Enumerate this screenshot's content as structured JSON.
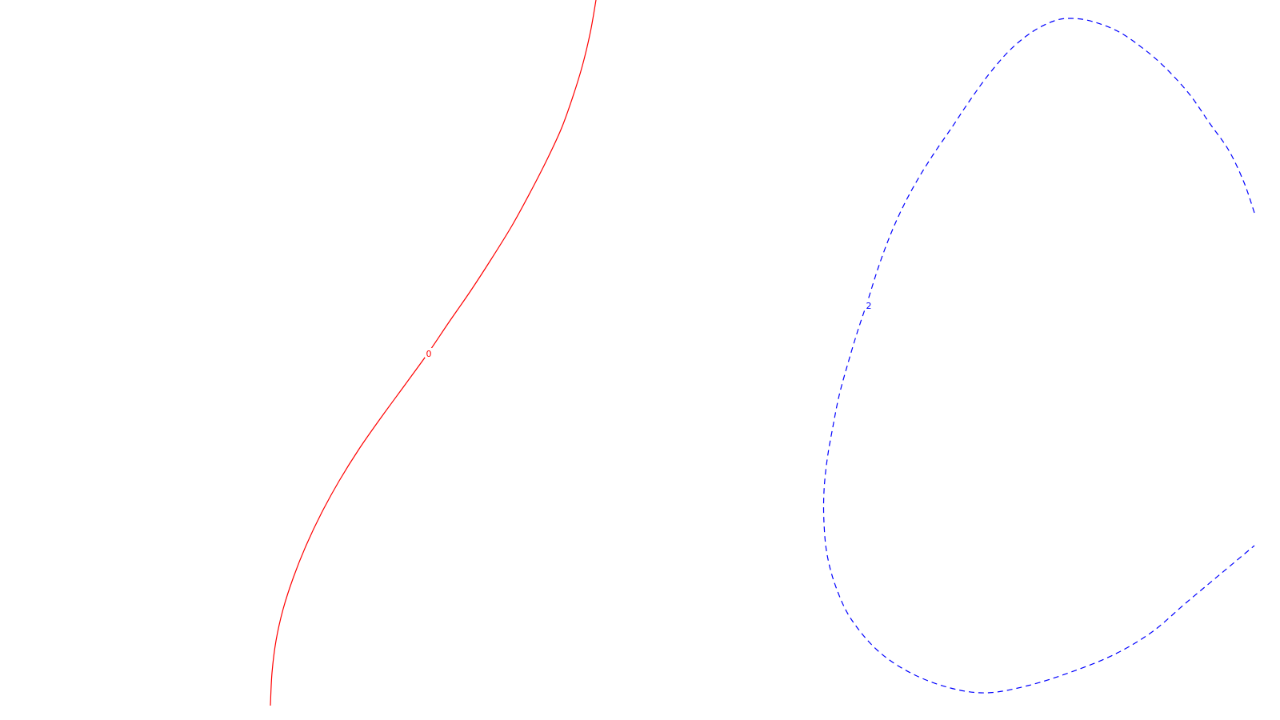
{
  "chart_data": {
    "type": "line",
    "grid": false,
    "series": [
      {
        "label": "0",
        "color": "#ff0000",
        "line_style": "solid",
        "points": [
          [
            745,
            0
          ],
          [
            738,
            40
          ],
          [
            728,
            82
          ],
          [
            716,
            121
          ],
          [
            702,
            160
          ],
          [
            684,
            199
          ],
          [
            663,
            240
          ],
          [
            640,
            282
          ],
          [
            614,
            324
          ],
          [
            588,
            364
          ],
          [
            561,
            403
          ],
          [
            536,
            440
          ],
          [
            507,
            480
          ],
          [
            477,
            521
          ],
          [
            449,
            561
          ],
          [
            424,
            601
          ],
          [
            402,
            641
          ],
          [
            383,
            681
          ],
          [
            367,
            721
          ],
          [
            354,
            761
          ],
          [
            345,
            801
          ],
          [
            340,
            841
          ],
          [
            338,
            882
          ]
        ],
        "label_position": [
          536,
          443
        ]
      },
      {
        "label": "2",
        "color": "#0000ff",
        "line_style": "dashed",
        "points": [
          [
            1568,
            266
          ],
          [
            1555,
            228
          ],
          [
            1536,
            188
          ],
          [
            1512,
            154
          ],
          [
            1487,
            118
          ],
          [
            1458,
            86
          ],
          [
            1432,
            63
          ],
          [
            1399,
            40
          ],
          [
            1366,
            27
          ],
          [
            1340,
            23
          ],
          [
            1318,
            26
          ],
          [
            1290,
            40
          ],
          [
            1262,
            63
          ],
          [
            1236,
            93
          ],
          [
            1212,
            126
          ],
          [
            1190,
            159
          ],
          [
            1166,
            194
          ],
          [
            1145,
            228
          ],
          [
            1127,
            262
          ],
          [
            1112,
            296
          ],
          [
            1098,
            334
          ],
          [
            1084,
            378
          ],
          [
            1072,
            414
          ],
          [
            1060,
            454
          ],
          [
            1049,
            494
          ],
          [
            1041,
            534
          ],
          [
            1034,
            574
          ],
          [
            1030,
            614
          ],
          [
            1030,
            654
          ],
          [
            1034,
            694
          ],
          [
            1045,
            734
          ],
          [
            1064,
            774
          ],
          [
            1098,
            814
          ],
          [
            1140,
            842
          ],
          [
            1188,
            860
          ],
          [
            1234,
            866
          ],
          [
            1285,
            857
          ],
          [
            1339,
            840
          ],
          [
            1393,
            818
          ],
          [
            1440,
            790
          ],
          [
            1482,
            754
          ],
          [
            1525,
            718
          ],
          [
            1568,
            682
          ]
        ],
        "label_position": [
          1086,
          383
        ]
      }
    ]
  }
}
